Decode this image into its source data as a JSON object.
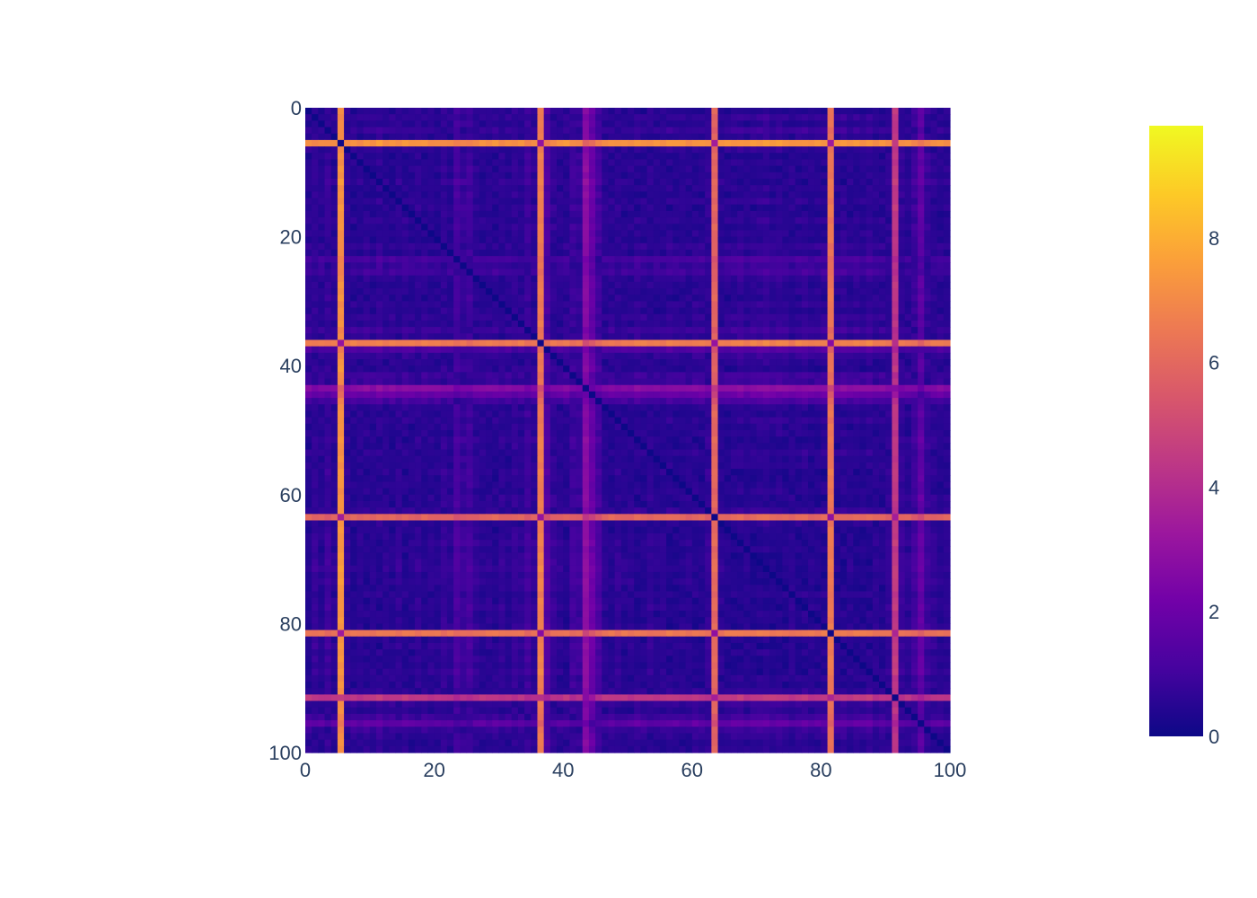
{
  "chart_data": {
    "type": "heatmap",
    "title": "",
    "xlabel": "",
    "ylabel": "",
    "n": 100,
    "description_of_values": "symmetric 100x100 pairwise-distance style matrix; diagonal ~0; strong bands at indices 5, 36, 63, 81; moderate bands at 43, 91, 95",
    "x_range": [
      0,
      100
    ],
    "y_range": [
      0,
      100
    ],
    "y_reversed": true,
    "x_ticks": [
      0,
      20,
      40,
      60,
      80,
      100
    ],
    "y_ticks": [
      0,
      20,
      40,
      60,
      80,
      100
    ],
    "x_tick_labels": [
      "0",
      "20",
      "40",
      "60",
      "80",
      "100"
    ],
    "y_tick_labels": [
      "0",
      "20",
      "40",
      "60",
      "80",
      "100"
    ],
    "z_range": [
      0,
      9.8
    ],
    "point_values": [
      1.0,
      1.4,
      1.1,
      1.5,
      1.2,
      7.8,
      1.3,
      1.0,
      1.2,
      0.9,
      1.1,
      0.8,
      1.2,
      1.0,
      1.3,
      0.9,
      1.1,
      1.3,
      1.0,
      1.2,
      1.1,
      1.4,
      1.2,
      1.8,
      1.5,
      1.7,
      1.3,
      1.1,
      1.2,
      1.0,
      1.3,
      1.1,
      1.4,
      1.2,
      1.6,
      1.3,
      7.2,
      2.0,
      1.4,
      1.2,
      1.0,
      1.6,
      1.5,
      3.4,
      2.6,
      1.8,
      1.2,
      1.0,
      1.3,
      1.1,
      1.2,
      0.9,
      1.0,
      1.3,
      1.1,
      1.2,
      0.9,
      1.0,
      1.1,
      1.2,
      0.9,
      1.0,
      1.4,
      6.5,
      1.2,
      1.0,
      0.9,
      0.8,
      1.1,
      0.9,
      0.8,
      0.7,
      0.9,
      0.8,
      1.0,
      1.2,
      0.9,
      0.8,
      1.1,
      1.0,
      0.9,
      7.0,
      1.0,
      0.8,
      1.1,
      0.9,
      1.0,
      0.8,
      1.2,
      1.0,
      1.3,
      5.0,
      1.4,
      1.2,
      1.6,
      2.4,
      1.5,
      1.3,
      1.1,
      1.2
    ],
    "colorscale": [
      "#0d0887",
      "#46039f",
      "#7201a8",
      "#9c179e",
      "#bd3786",
      "#d8576b",
      "#ed7953",
      "#fb9f3a",
      "#fdca26",
      "#f0f921"
    ],
    "colorbar": {
      "range": [
        0,
        9.8
      ],
      "ticks": [
        0,
        2,
        4,
        6,
        8
      ],
      "tick_labels": [
        "0",
        "2",
        "4",
        "6",
        "8"
      ]
    }
  }
}
